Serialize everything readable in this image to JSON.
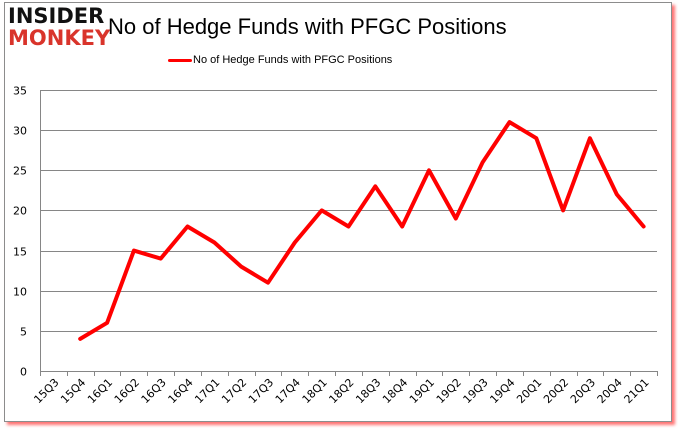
{
  "logo": {
    "line1": "INSIDER",
    "line2": "MONKEY"
  },
  "chart_data": {
    "type": "line",
    "title": "No of Hedge Funds with PFGC Positions",
    "xlabel": "",
    "ylabel": "",
    "categories": [
      "15Q3",
      "15Q4",
      "16Q1",
      "16Q2",
      "16Q3",
      "16Q4",
      "17Q1",
      "17Q2",
      "17Q3",
      "17Q4",
      "18Q1",
      "18Q2",
      "18Q3",
      "18Q4",
      "19Q1",
      "19Q2",
      "19Q3",
      "19Q4",
      "20Q1",
      "20Q2",
      "20Q3",
      "20Q4",
      "21Q1"
    ],
    "series": [
      {
        "name": "No of Hedge Funds with PFGC Positions",
        "color": "#ff0000",
        "values": [
          null,
          4,
          6,
          15,
          14,
          18,
          16,
          13,
          11,
          16,
          20,
          18,
          23,
          18,
          25,
          19,
          26,
          31,
          29,
          20,
          29,
          22,
          18
        ]
      }
    ],
    "ylim": [
      0,
      35
    ],
    "yticks": [
      0,
      5,
      10,
      15,
      20,
      25,
      30,
      35
    ],
    "grid": true,
    "legend_position": "top"
  }
}
